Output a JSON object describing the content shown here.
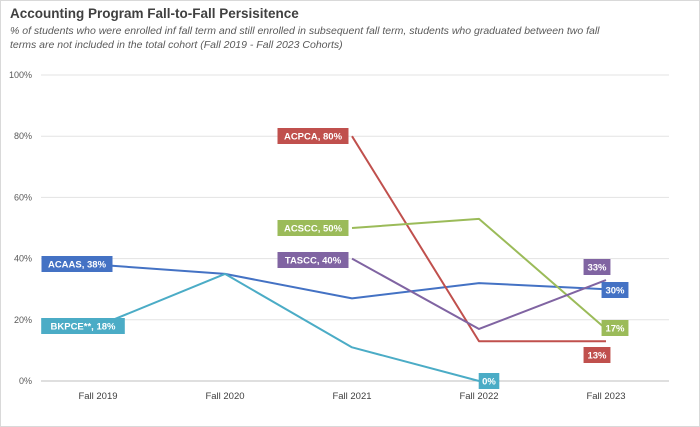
{
  "chart_data": {
    "type": "line",
    "title": "Accounting Program Fall-to-Fall Persisitence",
    "subtitle": "% of students who were enrolled inf fall term and still enrolled in subsequent fall term, students who graduated between two fall terms are not included in the total cohort (Fall 2019 - Fall 2023 Cohorts)",
    "categories": [
      "Fall 2019",
      "Fall 2020",
      "Fall 2021",
      "Fall 2022",
      "Fall 2023"
    ],
    "y_ticks": [
      "0%",
      "20%",
      "40%",
      "60%",
      "80%",
      "100%"
    ],
    "ylim": [
      0,
      100
    ],
    "grid": true,
    "series": [
      {
        "name": "ACAAS",
        "color": "#4472C4",
        "values": [
          38,
          35,
          27,
          32,
          30
        ],
        "labels": [
          {
            "i": 0,
            "text": "ACAAS, 38%"
          },
          {
            "i": 4,
            "text": "30%"
          }
        ]
      },
      {
        "name": "BKPCE**",
        "color": "#4BACC6",
        "values": [
          18,
          35,
          11,
          0,
          null
        ],
        "labels": [
          {
            "i": 0,
            "text": "BKPCE**, 18%"
          },
          {
            "i": 3,
            "text": "0%"
          }
        ]
      },
      {
        "name": "ACPCA",
        "color": "#C0504D",
        "values": [
          null,
          null,
          80,
          13,
          13
        ],
        "labels": [
          {
            "i": 2,
            "text": "ACPCA, 80%"
          },
          {
            "i": 4,
            "text": "13%"
          }
        ]
      },
      {
        "name": "ACSCC",
        "color": "#9BBB59",
        "values": [
          null,
          null,
          50,
          53,
          17
        ],
        "labels": [
          {
            "i": 2,
            "text": "ACSCC, 50%"
          },
          {
            "i": 4,
            "text": "17%"
          }
        ]
      },
      {
        "name": "TASCC",
        "color": "#8064A2",
        "values": [
          null,
          null,
          40,
          17,
          33
        ],
        "labels": [
          {
            "i": 2,
            "text": "TASCC, 40%"
          },
          {
            "i": 4,
            "text": "33%"
          }
        ]
      }
    ]
  }
}
